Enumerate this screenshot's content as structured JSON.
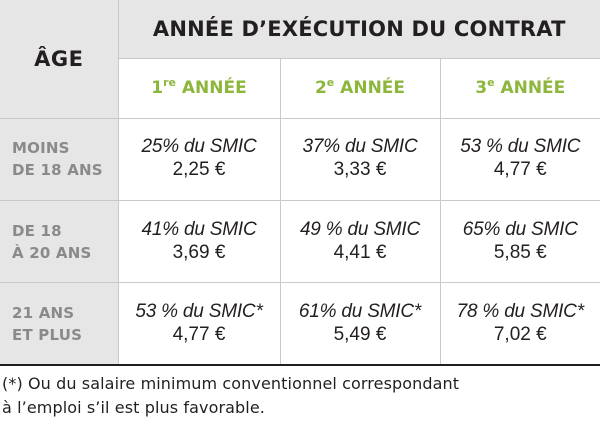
{
  "table": {
    "age_header": "ÂGE",
    "title": "ANNÉE D’EXÉCUTION DU CONTRAT",
    "years": [
      {
        "num": "1",
        "sup": "re",
        "label": " ANNÉE"
      },
      {
        "num": "2",
        "sup": "e",
        "label": " ANNÉE"
      },
      {
        "num": "3",
        "sup": "e",
        "label": " ANNÉE"
      }
    ],
    "rows": [
      {
        "label_line1": "MOINS",
        "label_line2": "DE 18 ANS",
        "cells": [
          {
            "pct": "25% du SMIC",
            "amount": "2,25 €"
          },
          {
            "pct": "37% du SMIC",
            "amount": "3,33 €"
          },
          {
            "pct": "53 % du SMIC",
            "amount": "4,77 €"
          }
        ]
      },
      {
        "label_line1": "DE 18",
        "label_line2": "À 20 ANS",
        "cells": [
          {
            "pct": "41% du SMIC",
            "amount": "3,69 €"
          },
          {
            "pct": "49 % du SMIC",
            "amount": "4,41 €"
          },
          {
            "pct": "65% du SMIC",
            "amount": "5,85 €"
          }
        ]
      },
      {
        "label_line1": "21 ANS",
        "label_line2": "ET PLUS",
        "cells": [
          {
            "pct": "53 % du SMIC*",
            "amount": "4,77 €"
          },
          {
            "pct": "61% du SMIC*",
            "amount": "5,49 €"
          },
          {
            "pct": "78 % du SMIC*",
            "amount": "7,02 €"
          }
        ]
      }
    ]
  },
  "footnote": {
    "line1": "(*) Ou du salaire minimum conventionnel correspondant",
    "line2": "à l’emploi s’il est plus favorable."
  },
  "colors": {
    "green_header": "#8db63c",
    "gray_label": "#8a8a8a",
    "gray_fill": "#e6e6e6",
    "text": "#231f20"
  }
}
